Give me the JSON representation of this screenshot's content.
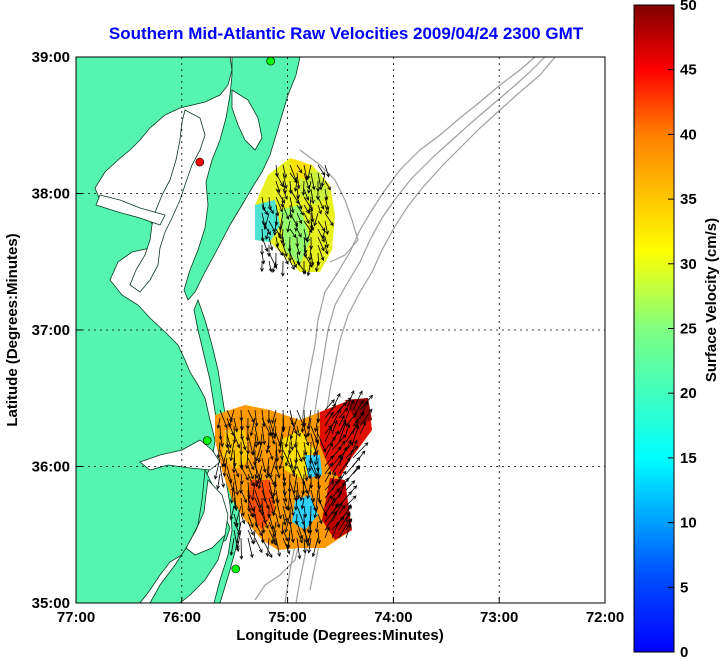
{
  "title": "Southern Mid-Atlantic Raw Velocities 2009/04/24 2300 GMT",
  "xlabel": "Longitude (Degrees:Minutes)",
  "ylabel": "Latitude (Degrees:Minutes)",
  "x_ticks": [
    "77:00",
    "76:00",
    "75:00",
    "74:00",
    "73:00",
    "72:00"
  ],
  "y_ticks": [
    "39:00",
    "38:00",
    "37:00",
    "36:00",
    "35:00"
  ],
  "colorbar": {
    "label": "Surface Velocity (cm/s)",
    "ticks": [
      "0",
      "5",
      "10",
      "15",
      "20",
      "25",
      "30",
      "35",
      "40",
      "45",
      "50"
    ],
    "range": [
      0,
      50
    ],
    "colormap": "jet"
  },
  "map": {
    "lon_range": [
      -77,
      -72
    ],
    "lat_range": [
      35,
      39
    ],
    "land_color": "#55f5b0",
    "water_color": "#ffffff",
    "bathymetry_color": "#a0a0a0",
    "grid": true
  },
  "stations": [
    {
      "lon": -75.16,
      "lat": 38.97,
      "color": "#00ff00"
    },
    {
      "lon": -75.83,
      "lat": 38.23,
      "color": "#ff0000"
    },
    {
      "lon": -75.76,
      "lat": 36.19,
      "color": "#00ff00"
    },
    {
      "lon": -75.49,
      "lat": 35.25,
      "color": "#00ff00"
    }
  ]
}
